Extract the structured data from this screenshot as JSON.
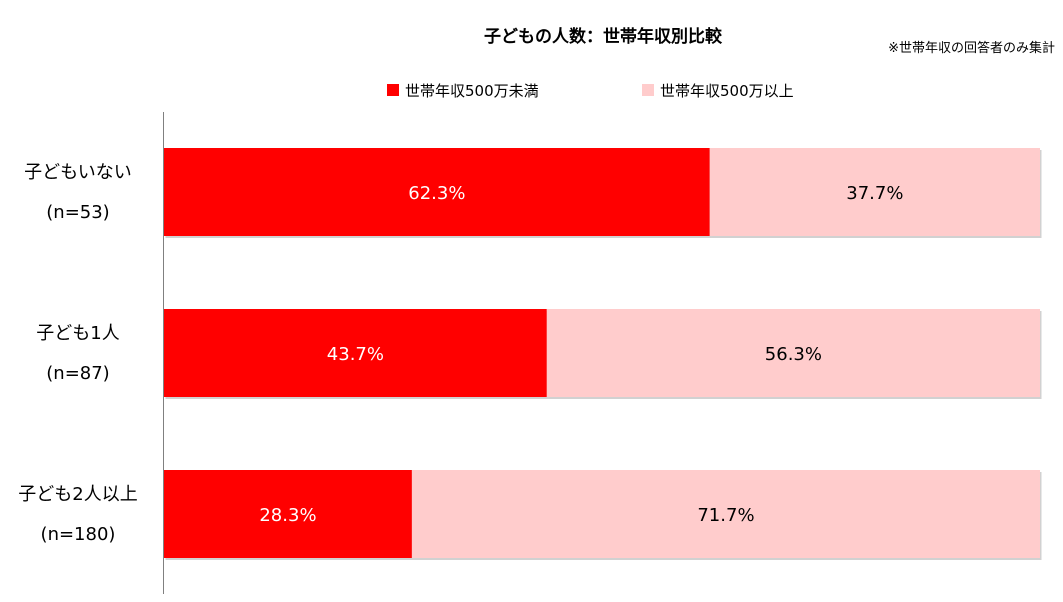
{
  "chart_data": {
    "type": "bar",
    "orientation": "horizontal",
    "stacked": true,
    "percent": true,
    "title": "子どもの人数：世帯年収別比較",
    "note": "※世帯年収の回答者のみ集計",
    "legend_position": "top",
    "categories": [
      {
        "label": "子どもいない",
        "n": "(n=53)"
      },
      {
        "label": "子ども1人",
        "n": "(n=87)"
      },
      {
        "label": "子ども2人以上",
        "n": "(n=180)"
      }
    ],
    "series": [
      {
        "name": "世帯年収500万未満",
        "values": [
          62.3,
          43.7,
          28.3
        ],
        "labels": [
          "62.3%",
          "43.7%",
          "28.3%"
        ],
        "color": "#ff0000",
        "label_color": "#ffffff"
      },
      {
        "name": "世帯年収500万以上",
        "values": [
          37.7,
          56.3,
          71.7
        ],
        "labels": [
          "37.7%",
          "56.3%",
          "71.7%"
        ],
        "color": "#ffcccc",
        "label_color": "#000000"
      }
    ],
    "xlim": [
      0,
      100
    ],
    "grid": false
  }
}
